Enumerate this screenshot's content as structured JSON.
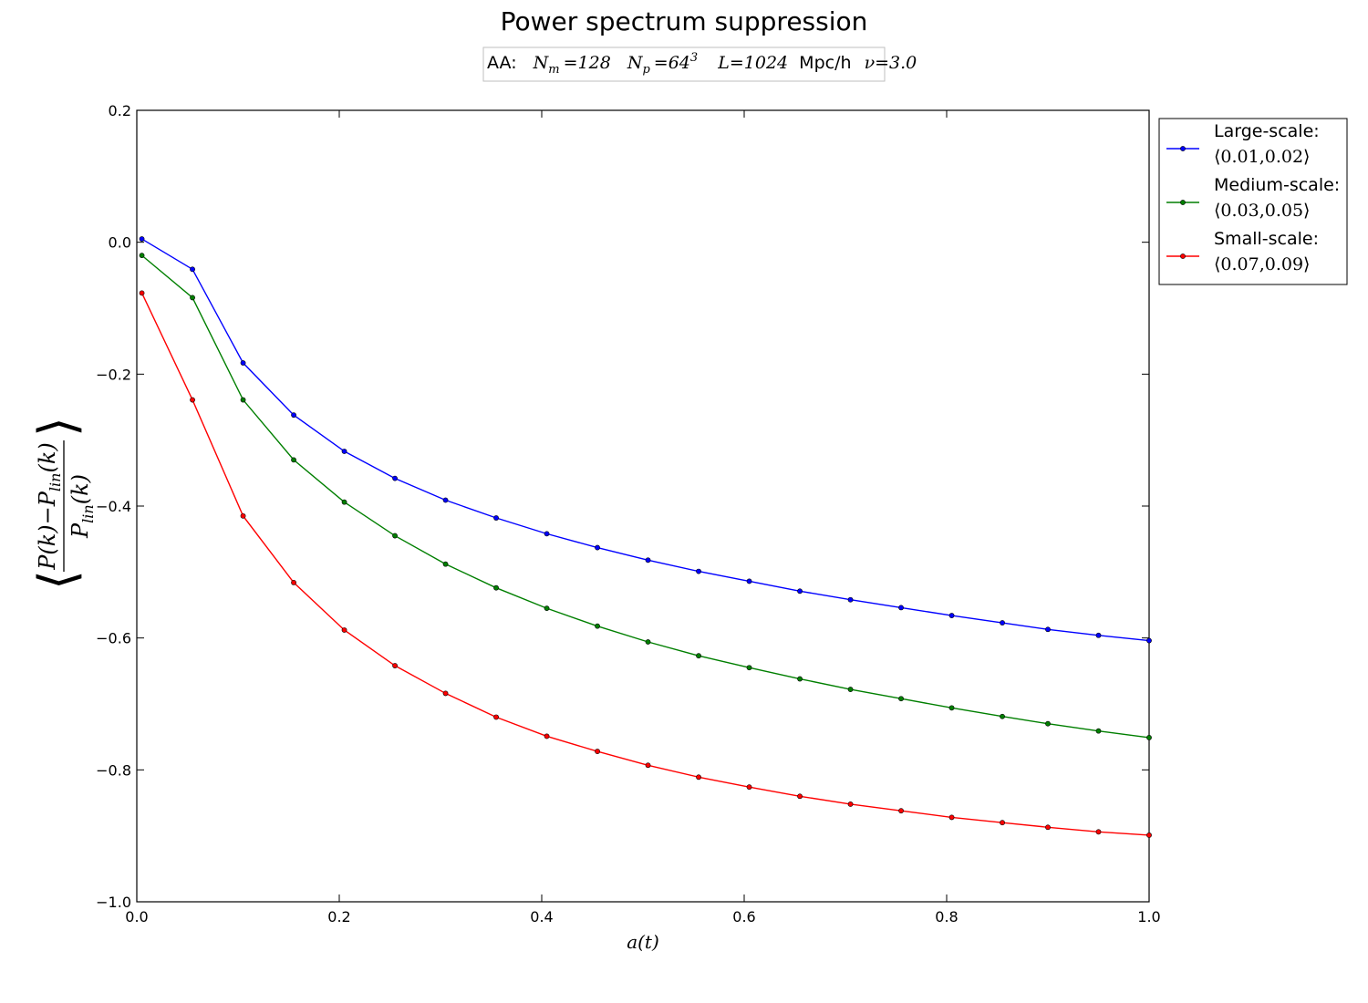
{
  "chart_data": {
    "type": "line",
    "title": "Power spectrum suppression",
    "subtitle": "AA: N_m = 128   N_p = 64³    L = 1024 Mpc/h   ν = 3.0",
    "subtitle_parts": {
      "prefix": "AA:",
      "nm": "N",
      "nm_sub": "m",
      "nm_val": "=128",
      "np": "N",
      "np_sub": "p",
      "np_val": "=64",
      "np_sup": "3",
      "l": "L",
      "l_val": "=1024",
      "l_unit": "Mpc/h",
      "nu": "ν",
      "nu_val": "=3.0"
    },
    "xlabel": "a(t)",
    "ylabel": "⟨(P(k) − P_lin(k)) / P_lin(k)⟩",
    "ylabel_parts": {
      "numerator": "P(k)−P",
      "numerator_sub": "lin",
      "numerator_tail": "(k)",
      "denominator": "P",
      "denominator_sub": "lin",
      "denominator_tail": "(k)"
    },
    "xlim": [
      0.0,
      1.0
    ],
    "ylim": [
      -1.0,
      0.2
    ],
    "xticks": [
      0.0,
      0.2,
      0.4,
      0.6,
      0.8,
      1.0
    ],
    "xtick_labels": [
      "0.0",
      "0.2",
      "0.4",
      "0.6",
      "0.8",
      "1.0"
    ],
    "yticks": [
      0.2,
      0.0,
      -0.2,
      -0.4,
      -0.6,
      -0.8,
      -1.0
    ],
    "ytick_labels": [
      "0.2",
      "0.0",
      "−0.2",
      "−0.4",
      "−0.6",
      "−0.8",
      "−1.0"
    ],
    "grid": false,
    "legend_position": "outside-right-top",
    "x": [
      0.005,
      0.055,
      0.105,
      0.155,
      0.205,
      0.255,
      0.305,
      0.355,
      0.405,
      0.455,
      0.505,
      0.555,
      0.605,
      0.655,
      0.705,
      0.755,
      0.805,
      0.855,
      0.9,
      0.95,
      1.0
    ],
    "series": [
      {
        "name": "Large-scale:",
        "range_label": "⟨0.01,0.02⟩",
        "color": "#0000ff",
        "values": [
          0.005,
          -0.041,
          -0.183,
          -0.262,
          -0.317,
          -0.358,
          -0.391,
          -0.418,
          -0.442,
          -0.463,
          -0.482,
          -0.499,
          -0.514,
          -0.529,
          -0.542,
          -0.554,
          -0.566,
          -0.577,
          -0.587,
          -0.596,
          -0.604
        ]
      },
      {
        "name": "Medium-scale:",
        "range_label": "⟨0.03,0.05⟩",
        "color": "#007f00",
        "values": [
          -0.02,
          -0.084,
          -0.239,
          -0.33,
          -0.394,
          -0.445,
          -0.488,
          -0.524,
          -0.555,
          -0.582,
          -0.606,
          -0.627,
          -0.645,
          -0.662,
          -0.678,
          -0.692,
          -0.706,
          -0.719,
          -0.73,
          -0.741,
          -0.751
        ]
      },
      {
        "name": "Small-scale:",
        "range_label": "⟨0.07,0.09⟩",
        "color": "#ff0000",
        "values": [
          -0.077,
          -0.239,
          -0.415,
          -0.516,
          -0.588,
          -0.642,
          -0.684,
          -0.72,
          -0.749,
          -0.772,
          -0.793,
          -0.811,
          -0.826,
          -0.84,
          -0.852,
          -0.862,
          -0.872,
          -0.88,
          -0.887,
          -0.894,
          -0.899
        ]
      }
    ]
  }
}
